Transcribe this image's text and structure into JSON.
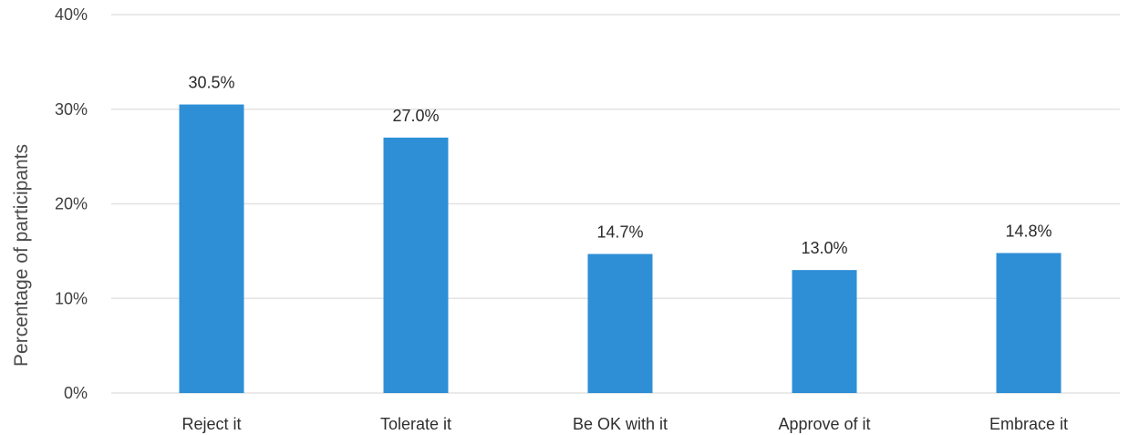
{
  "chart_data": {
    "type": "bar",
    "categories": [
      "Reject it",
      "Tolerate it",
      "Be OK with it",
      "Approve of it",
      "Embrace it"
    ],
    "values": [
      30.5,
      27.0,
      14.7,
      13.0,
      14.8
    ],
    "value_labels": [
      "30.5%",
      "27.0%",
      "14.7%",
      "13.0%",
      "14.8%"
    ],
    "title": "",
    "xlabel": "",
    "ylabel": "Percentage of participants",
    "ylim": [
      0,
      40
    ],
    "yticks": [
      0,
      10,
      20,
      30,
      40
    ],
    "ytick_labels": [
      "0%",
      "10%",
      "20%",
      "30%",
      "40%"
    ],
    "grid": true,
    "legend": "none",
    "bar_color": "#2e8fd6"
  }
}
